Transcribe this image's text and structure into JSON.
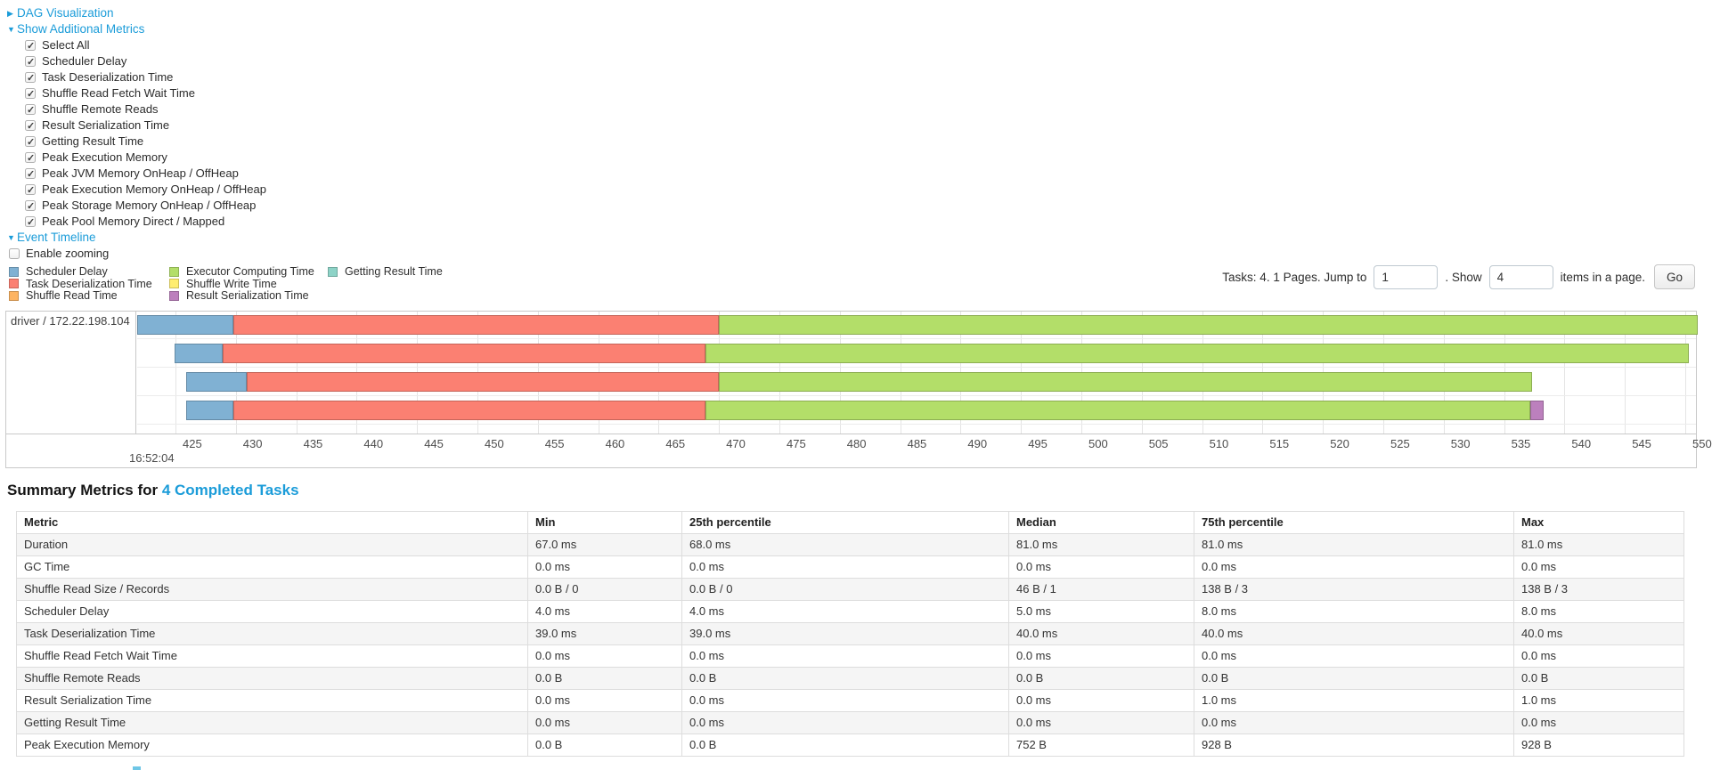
{
  "links": {
    "dag_visualization": "DAG Visualization",
    "show_additional_metrics": "Show Additional Metrics",
    "event_timeline": "Event Timeline"
  },
  "metrics_panel": {
    "items": [
      {
        "label": "Select All",
        "checked": true
      },
      {
        "label": "Scheduler Delay",
        "checked": true
      },
      {
        "label": "Task Deserialization Time",
        "checked": true
      },
      {
        "label": "Shuffle Read Fetch Wait Time",
        "checked": true
      },
      {
        "label": "Shuffle Remote Reads",
        "checked": true
      },
      {
        "label": "Result Serialization Time",
        "checked": true
      },
      {
        "label": "Getting Result Time",
        "checked": true
      },
      {
        "label": "Peak Execution Memory",
        "checked": true
      },
      {
        "label": "Peak JVM Memory OnHeap / OffHeap",
        "checked": true
      },
      {
        "label": "Peak Execution Memory OnHeap / OffHeap",
        "checked": true
      },
      {
        "label": "Peak Storage Memory OnHeap / OffHeap",
        "checked": true
      },
      {
        "label": "Peak Pool Memory Direct / Mapped",
        "checked": true
      }
    ]
  },
  "enable_zooming": {
    "label": "Enable zooming",
    "checked": false
  },
  "pagination": {
    "tasks_text": "Tasks: 4. 1 Pages. Jump to",
    "jump_value": "1",
    "show_text": ". Show",
    "show_value": "4",
    "items_text": "items in a page.",
    "go_label": "Go"
  },
  "chart_data": {
    "type": "timeline",
    "title": "Event Timeline",
    "group_label": "driver / 172.22.198.104",
    "time_label": "16:52:04",
    "axis": {
      "min": 425,
      "max": 550,
      "tick_step": 5,
      "ticks": [
        425,
        430,
        435,
        440,
        445,
        450,
        455,
        460,
        465,
        470,
        475,
        480,
        485,
        490,
        495,
        500,
        505,
        510,
        515,
        520,
        525,
        530,
        535,
        540,
        545,
        550
      ]
    },
    "legend": [
      {
        "key": "scheduler-delay",
        "label": "Scheduler Delay",
        "color": "#80B1D3"
      },
      {
        "key": "task-deserialization",
        "label": "Task Deserialization Time",
        "color": "#FB8072"
      },
      {
        "key": "shuffle-read",
        "label": "Shuffle Read Time",
        "color": "#FDB462"
      },
      {
        "key": "executor-computing",
        "label": "Executor Computing Time",
        "color": "#B3DE69"
      },
      {
        "key": "shuffle-write",
        "label": "Shuffle Write Time",
        "color": "#FFED6F"
      },
      {
        "key": "result-serialization",
        "label": "Result Serialization Time",
        "color": "#BC80BD"
      },
      {
        "key": "getting-result",
        "label": "Getting Result Time",
        "color": "#8DD3C7"
      }
    ],
    "legend_columns": [
      [
        "scheduler-delay",
        "task-deserialization",
        "shuffle-read"
      ],
      [
        "executor-computing",
        "shuffle-write",
        "result-serialization"
      ],
      [
        "getting-result"
      ]
    ],
    "tasks": [
      {
        "segments": [
          {
            "kind": "scheduler-delay",
            "from": 421.7,
            "to": 429.8
          },
          {
            "kind": "task-deserialization",
            "from": 429.8,
            "to": 470.0
          },
          {
            "kind": "executor-computing",
            "from": 470.0,
            "to": 551.5
          }
        ]
      },
      {
        "segments": [
          {
            "kind": "scheduler-delay",
            "from": 424.9,
            "to": 428.9
          },
          {
            "kind": "task-deserialization",
            "from": 428.9,
            "to": 468.9
          },
          {
            "kind": "executor-computing",
            "from": 468.9,
            "to": 550.3
          }
        ]
      },
      {
        "segments": [
          {
            "kind": "scheduler-delay",
            "from": 425.9,
            "to": 430.9
          },
          {
            "kind": "task-deserialization",
            "from": 430.9,
            "to": 470.0
          },
          {
            "kind": "executor-computing",
            "from": 470.0,
            "to": 537.3
          }
        ]
      },
      {
        "segments": [
          {
            "kind": "scheduler-delay",
            "from": 425.9,
            "to": 429.8
          },
          {
            "kind": "task-deserialization",
            "from": 429.8,
            "to": 468.9
          },
          {
            "kind": "executor-computing",
            "from": 468.9,
            "to": 537.2
          },
          {
            "kind": "result-serialization",
            "from": 537.2,
            "to": 538.3
          }
        ]
      }
    ]
  },
  "summary": {
    "heading_prefix": "Summary Metrics for ",
    "heading_link": "4 Completed Tasks",
    "columns": [
      "Metric",
      "Min",
      "25th percentile",
      "Median",
      "75th percentile",
      "Max"
    ],
    "rows": [
      {
        "metric": "Duration",
        "values": [
          "67.0 ms",
          "68.0 ms",
          "81.0 ms",
          "81.0 ms",
          "81.0 ms"
        ]
      },
      {
        "metric": "GC Time",
        "values": [
          "0.0 ms",
          "0.0 ms",
          "0.0 ms",
          "0.0 ms",
          "0.0 ms"
        ]
      },
      {
        "metric": "Shuffle Read Size / Records",
        "values": [
          "0.0 B / 0",
          "0.0 B / 0",
          "46 B / 1",
          "138 B / 3",
          "138 B / 3"
        ]
      },
      {
        "metric": "Scheduler Delay",
        "values": [
          "4.0 ms",
          "4.0 ms",
          "5.0 ms",
          "8.0 ms",
          "8.0 ms"
        ]
      },
      {
        "metric": "Task Deserialization Time",
        "values": [
          "39.0 ms",
          "39.0 ms",
          "40.0 ms",
          "40.0 ms",
          "40.0 ms"
        ]
      },
      {
        "metric": "Shuffle Read Fetch Wait Time",
        "values": [
          "0.0 ms",
          "0.0 ms",
          "0.0 ms",
          "0.0 ms",
          "0.0 ms"
        ]
      },
      {
        "metric": "Shuffle Remote Reads",
        "values": [
          "0.0 B",
          "0.0 B",
          "0.0 B",
          "0.0 B",
          "0.0 B"
        ]
      },
      {
        "metric": "Result Serialization Time",
        "values": [
          "0.0 ms",
          "0.0 ms",
          "0.0 ms",
          "1.0 ms",
          "1.0 ms"
        ]
      },
      {
        "metric": "Getting Result Time",
        "values": [
          "0.0 ms",
          "0.0 ms",
          "0.0 ms",
          "0.0 ms",
          "0.0 ms"
        ]
      },
      {
        "metric": "Peak Execution Memory",
        "values": [
          "0.0 B",
          "0.0 B",
          "752 B",
          "928 B",
          "928 B"
        ]
      }
    ]
  },
  "colors": {
    "link_blue": "#1b9cd9"
  }
}
